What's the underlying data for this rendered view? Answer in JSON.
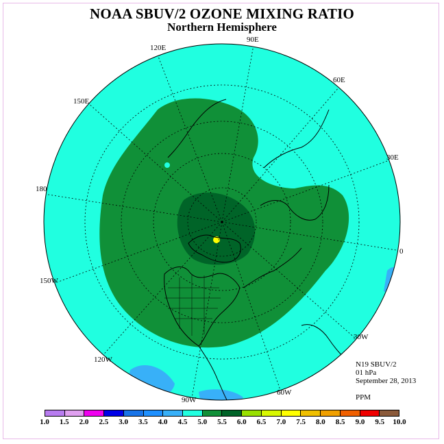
{
  "title": "NOAA SBUV/2 OZONE MIXING RATIO",
  "subtitle": "Northern Hemisphere",
  "info": {
    "instrument": "N19 SBUV/2",
    "level": "01 hPa",
    "date": "September 28, 2013",
    "units": "PPM"
  },
  "longitude_labels": {
    "e90": "90E",
    "e60": "60E",
    "e30": "30E",
    "zero": "0",
    "w30": "30W",
    "w60": "60W",
    "w90": "90W",
    "w120": "120W",
    "w150": "150W",
    "d180": "180",
    "e150": "150E",
    "e120": "120E"
  },
  "legend": {
    "ticks": [
      "1.0",
      "1.5",
      "2.0",
      "2.5",
      "3.0",
      "3.5",
      "4.0",
      "4.5",
      "5.0",
      "5.5",
      "6.0",
      "6.5",
      "7.0",
      "7.5",
      "8.0",
      "8.5",
      "9.0",
      "9.5",
      "10.0"
    ],
    "colors": [
      "#b87cf0",
      "#e0a0f0",
      "#f000f0",
      "#0000e8",
      "#1874e8",
      "#1e90ff",
      "#38b0f8",
      "#20ffe0",
      "#109038",
      "#006428",
      "#98e000",
      "#d8f800",
      "#ffff00",
      "#f0c000",
      "#f0a000",
      "#f06000",
      "#f00000",
      "#8b5a3a"
    ]
  },
  "colors": {
    "background_field": "#20ffe0",
    "mid_field": "#109038",
    "high_field": "#006428",
    "low_field": "#38b0f8",
    "peak_spot": "#ffff00"
  }
}
